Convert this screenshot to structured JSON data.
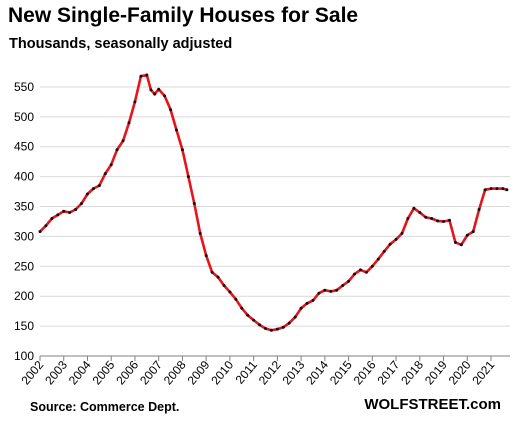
{
  "header": {
    "title": "New Single-Family Houses for Sale",
    "subtitle": "Thousands, seasonally adjusted"
  },
  "footer": {
    "source": "Source: Commerce Dept.",
    "brand": "WOLFSTREET.com"
  },
  "colors": {
    "line": "#e8141b",
    "markers": "#111111",
    "grid": "#d9d9d9",
    "axis": "#808080"
  },
  "chart_data": {
    "type": "line",
    "title": "New Single-Family Houses for Sale",
    "subtitle": "Thousands, seasonally adjusted",
    "xlabel": "",
    "ylabel": "",
    "ylim": [
      100,
      570
    ],
    "xlim": [
      2002.0,
      2021.8
    ],
    "y_ticks": [
      100,
      150,
      200,
      250,
      300,
      350,
      400,
      450,
      500,
      550
    ],
    "x_tick_labels": [
      "2002",
      "2003",
      "2004",
      "2005",
      "2006",
      "2007",
      "2008",
      "2009",
      "2010",
      "2011",
      "2012",
      "2013",
      "2014",
      "2015",
      "2016",
      "2017",
      "2018",
      "2019",
      "2020",
      "2021"
    ],
    "grid": true,
    "legend": "none",
    "markers": true,
    "series": [
      {
        "x": [
          2002.0,
          2002.25,
          2002.5,
          2002.75,
          2003.0,
          2003.25,
          2003.5,
          2003.75,
          2004.0,
          2004.25,
          2004.5,
          2004.75,
          2005.0,
          2005.25,
          2005.5,
          2005.75,
          2006.0,
          2006.25,
          2006.5,
          2006.67,
          2006.83,
          2007.0,
          2007.25,
          2007.5,
          2007.75,
          2008.0,
          2008.25,
          2008.5,
          2008.75,
          2009.0,
          2009.25,
          2009.5,
          2009.75,
          2010.0,
          2010.25,
          2010.5,
          2010.75,
          2011.0,
          2011.25,
          2011.5,
          2011.75,
          2012.0,
          2012.25,
          2012.5,
          2012.75,
          2013.0,
          2013.25,
          2013.5,
          2013.75,
          2014.0,
          2014.25,
          2014.5,
          2014.75,
          2015.0,
          2015.25,
          2015.5,
          2015.75,
          2016.0,
          2016.25,
          2016.5,
          2016.75,
          2017.0,
          2017.25,
          2017.5,
          2017.75,
          2018.0,
          2018.25,
          2018.5,
          2018.75,
          2019.0,
          2019.25,
          2019.5,
          2019.75,
          2020.0,
          2020.25,
          2020.5,
          2020.75,
          2021.0,
          2021.25,
          2021.5,
          2021.67
        ],
        "values": [
          308,
          318,
          330,
          336,
          342,
          340,
          345,
          355,
          371,
          380,
          385,
          405,
          420,
          445,
          460,
          490,
          525,
          568,
          570,
          545,
          538,
          546,
          535,
          512,
          478,
          445,
          400,
          355,
          305,
          268,
          240,
          232,
          218,
          207,
          195,
          180,
          168,
          160,
          152,
          146,
          143,
          145,
          148,
          155,
          165,
          180,
          188,
          193,
          205,
          210,
          208,
          210,
          218,
          225,
          237,
          244,
          240,
          250,
          262,
          275,
          287,
          295,
          305,
          330,
          347,
          340,
          332,
          330,
          326,
          325,
          327,
          290,
          286,
          302,
          308,
          345,
          378,
          380,
          380,
          380,
          378
        ]
      }
    ]
  }
}
